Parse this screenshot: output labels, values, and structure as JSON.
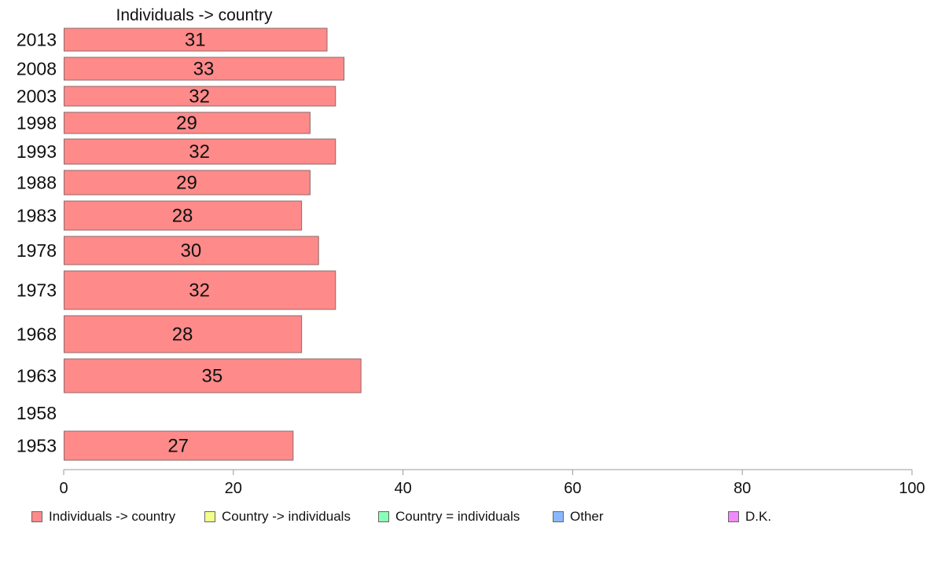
{
  "chart_data": {
    "type": "bar",
    "orientation": "horizontal",
    "title": "Individuals -> country",
    "categories": [
      "2013",
      "2008",
      "2003",
      "1998",
      "1993",
      "1988",
      "1983",
      "1978",
      "1973",
      "1968",
      "1963",
      "1958",
      "1953"
    ],
    "series": [
      {
        "name": "Individuals -> country",
        "color": "#ff8a8a",
        "values": [
          31,
          33,
          32,
          29,
          32,
          29,
          28,
          30,
          32,
          28,
          35,
          null,
          27
        ]
      }
    ],
    "xlim": [
      0,
      100
    ],
    "xticks": [
      "0",
      "20",
      "40",
      "60",
      "80",
      "100"
    ],
    "grid": false,
    "legend_position": "bottom"
  },
  "legend": [
    {
      "label": "Individuals -> country",
      "color": "#ff8a8a"
    },
    {
      "label": "Country -> individuals",
      "color": "#f2ff8a"
    },
    {
      "label": "Country = individuals",
      "color": "#8affb8"
    },
    {
      "label": "Other",
      "color": "#8ab8ff"
    },
    {
      "label": "D.K.",
      "color": "#f08aff"
    }
  ]
}
